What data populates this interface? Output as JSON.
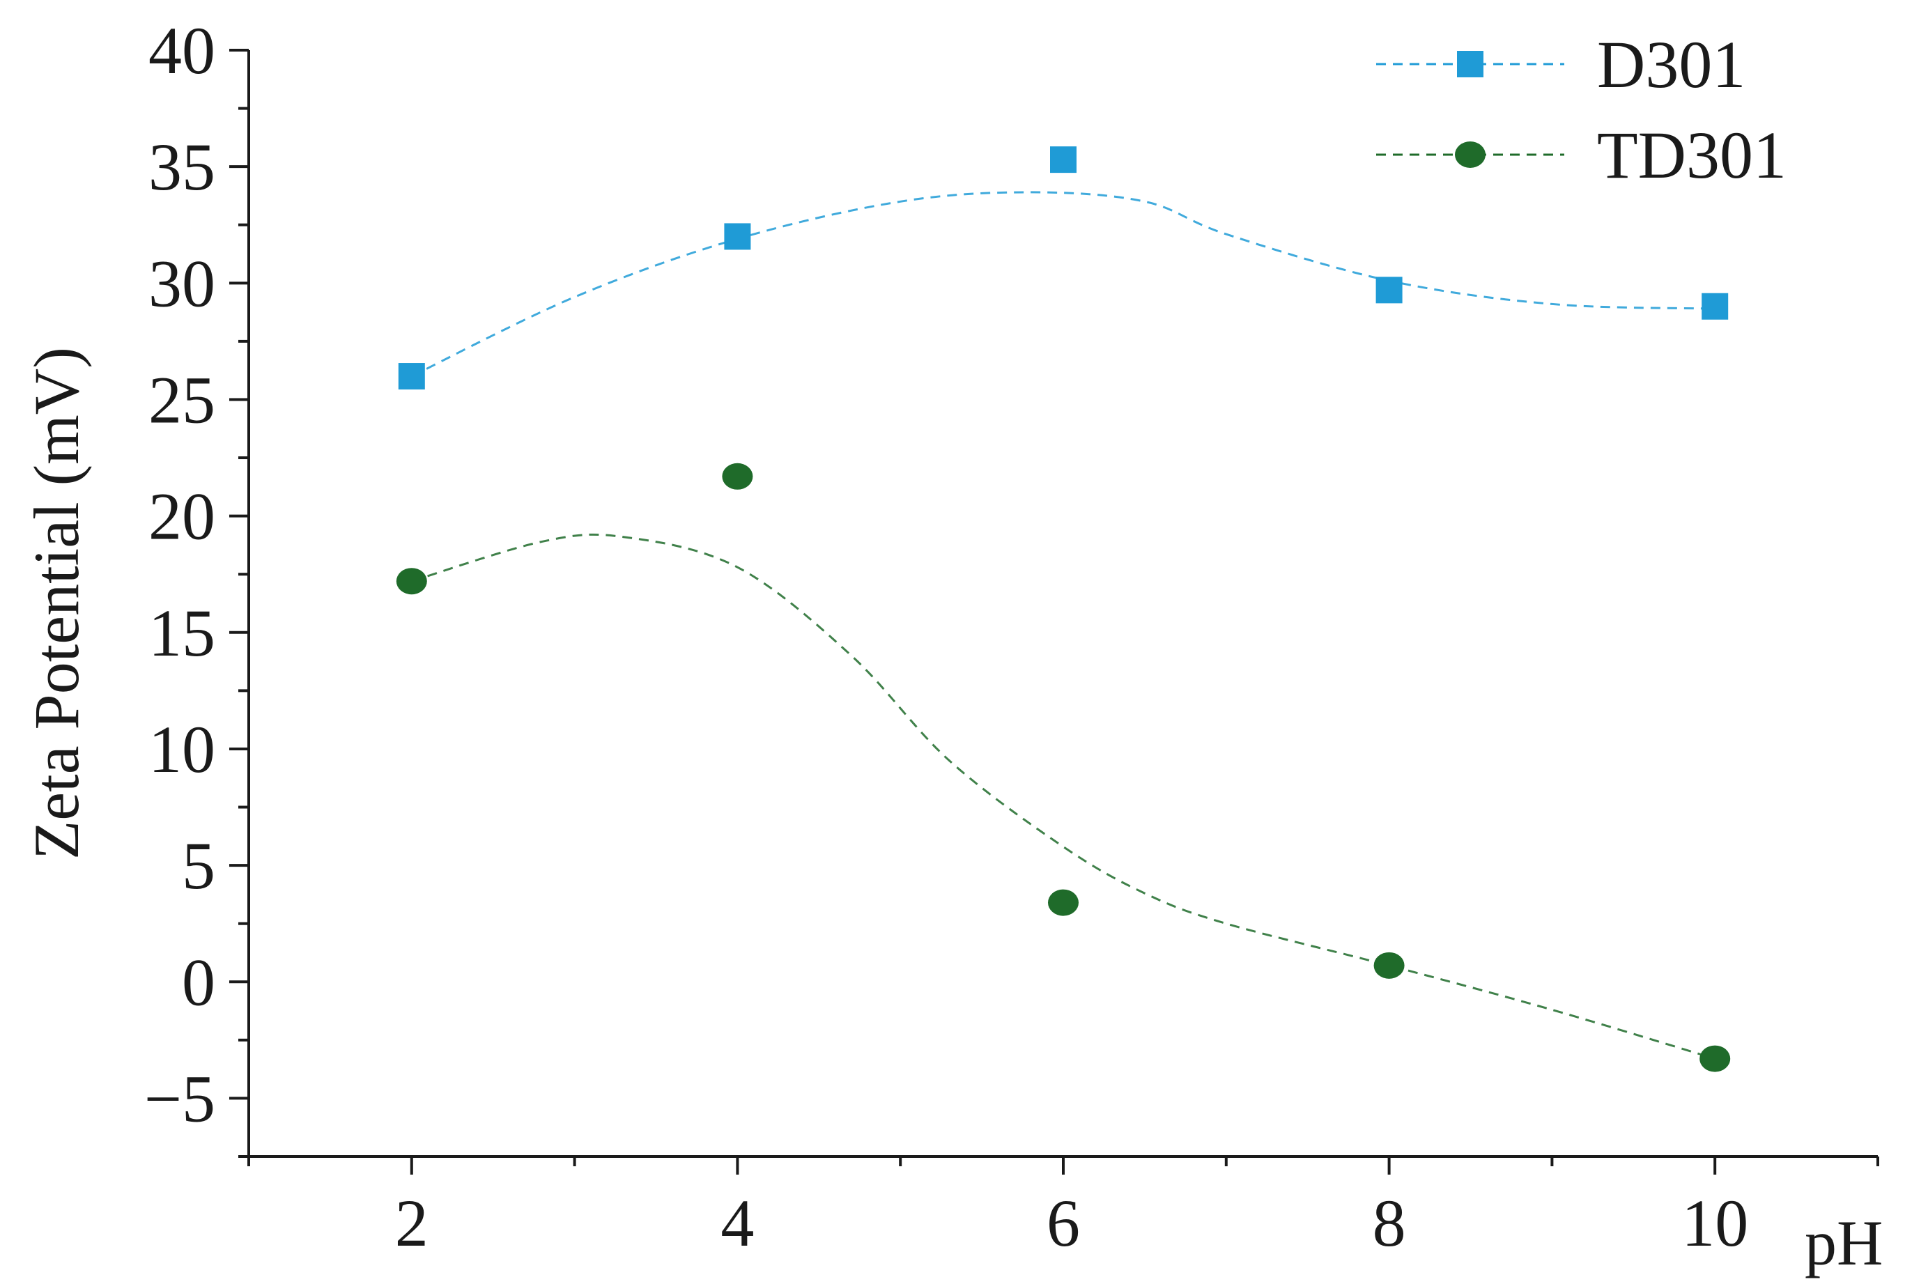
{
  "chart_data": {
    "type": "scatter",
    "title": "",
    "xlabel": "pH",
    "ylabel": "Zeta Potential (mV)",
    "xlim": [
      1,
      11
    ],
    "ylim": [
      -7.5,
      40
    ],
    "x_ticks": [
      2,
      4,
      6,
      8,
      10
    ],
    "x_tick_labels": [
      "2",
      "4",
      "6",
      "8",
      "10"
    ],
    "y_ticks": [
      -5,
      0,
      5,
      10,
      15,
      20,
      25,
      30,
      35,
      40
    ],
    "y_tick_labels": [
      "−5",
      "0",
      "5",
      "10",
      "15",
      "20",
      "25",
      "30",
      "35",
      "40"
    ],
    "grid": false,
    "legend_position": "top-right",
    "series": [
      {
        "name": "D301",
        "marker": "square",
        "color": "#1f9bd6",
        "x": [
          2,
          4,
          6,
          8,
          10
        ],
        "y": [
          26.0,
          32.0,
          35.3,
          29.7,
          29.0
        ],
        "fit_curve": {
          "style": "dashed",
          "x": [
            2,
            3,
            4,
            5,
            5.8,
            6.5,
            7,
            8,
            9,
            10
          ],
          "y": [
            26.0,
            29.4,
            31.9,
            33.5,
            33.9,
            33.5,
            32.1,
            30.1,
            29.1,
            28.9
          ]
        }
      },
      {
        "name": "TD301",
        "marker": "circle",
        "color": "#1f6b2a",
        "x": [
          2,
          4,
          6,
          8,
          10
        ],
        "y": [
          17.2,
          21.7,
          3.4,
          0.7,
          -3.3
        ],
        "fit_curve": {
          "style": "dashed",
          "x": [
            2,
            2.8,
            3.3,
            4,
            4.7,
            5.3,
            6,
            6.5,
            7,
            8,
            9,
            10
          ],
          "y": [
            17.2,
            18.9,
            19.1,
            17.8,
            14.0,
            9.5,
            5.8,
            3.8,
            2.5,
            0.7,
            -1.2,
            -3.3
          ]
        }
      }
    ]
  }
}
